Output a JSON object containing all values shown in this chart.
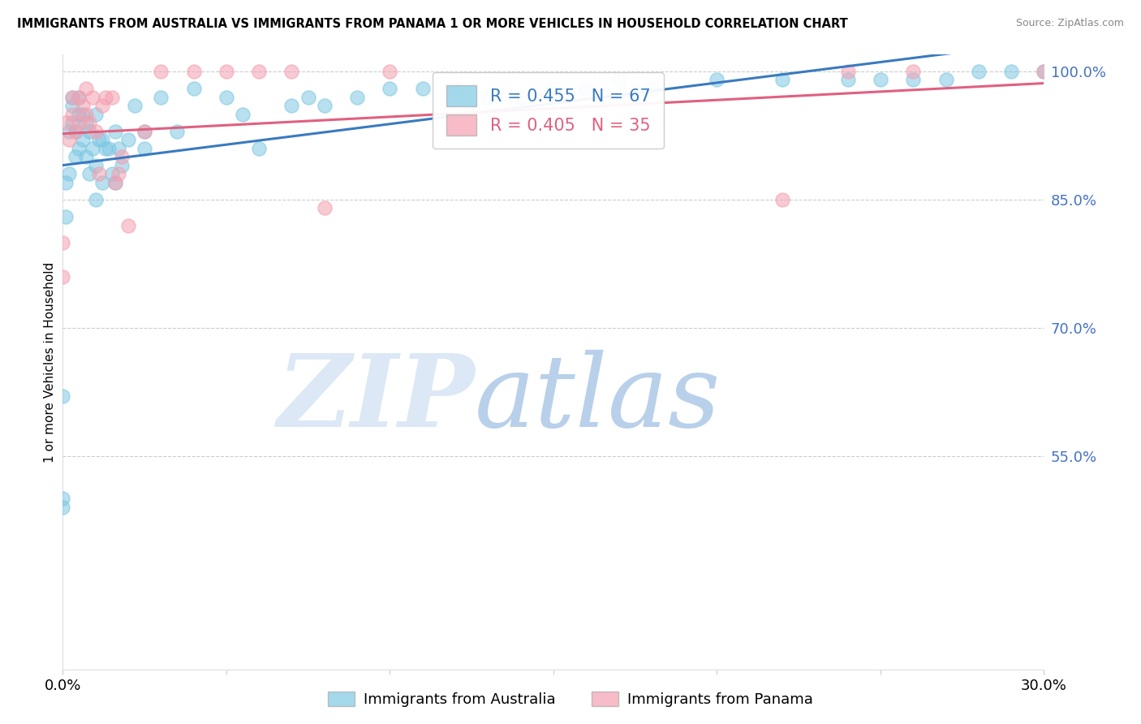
{
  "title": "IMMIGRANTS FROM AUSTRALIA VS IMMIGRANTS FROM PANAMA 1 OR MORE VEHICLES IN HOUSEHOLD CORRELATION CHART",
  "source": "Source: ZipAtlas.com",
  "ylabel": "1 or more Vehicles in Household",
  "xmin": 0.0,
  "xmax": 0.3,
  "ymin": 0.3,
  "ymax": 1.02,
  "grid_color": "#cccccc",
  "background_color": "#ffffff",
  "australia_color": "#7ec8e3",
  "panama_color": "#f4a0b0",
  "australia_line_color": "#3a7abf",
  "panama_line_color": "#e06080",
  "R_australia": 0.455,
  "N_australia": 67,
  "R_panama": 0.405,
  "N_panama": 35,
  "legend_australia": "Immigrants from Australia",
  "legend_panama": "Immigrants from Panama",
  "ytick_vals": [
    1.0,
    0.85,
    0.7,
    0.55
  ],
  "ytick_labels": [
    "100.0%",
    "85.0%",
    "70.0%",
    "55.0%"
  ],
  "australia_x": [
    0.0,
    0.0,
    0.0,
    0.001,
    0.001,
    0.002,
    0.002,
    0.003,
    0.003,
    0.003,
    0.004,
    0.004,
    0.005,
    0.005,
    0.005,
    0.006,
    0.006,
    0.007,
    0.007,
    0.008,
    0.008,
    0.009,
    0.01,
    0.01,
    0.01,
    0.011,
    0.012,
    0.012,
    0.013,
    0.014,
    0.015,
    0.016,
    0.016,
    0.017,
    0.018,
    0.02,
    0.022,
    0.025,
    0.025,
    0.03,
    0.035,
    0.04,
    0.05,
    0.055,
    0.06,
    0.07,
    0.075,
    0.08,
    0.09,
    0.1,
    0.11,
    0.12,
    0.13,
    0.14,
    0.15,
    0.16,
    0.17,
    0.18,
    0.2,
    0.22,
    0.24,
    0.25,
    0.26,
    0.27,
    0.28,
    0.29,
    0.3
  ],
  "australia_y": [
    0.5,
    0.49,
    0.62,
    0.83,
    0.87,
    0.88,
    0.93,
    0.94,
    0.96,
    0.97,
    0.9,
    0.93,
    0.91,
    0.95,
    0.97,
    0.92,
    0.95,
    0.9,
    0.94,
    0.88,
    0.93,
    0.91,
    0.85,
    0.89,
    0.95,
    0.92,
    0.87,
    0.92,
    0.91,
    0.91,
    0.88,
    0.87,
    0.93,
    0.91,
    0.89,
    0.92,
    0.96,
    0.91,
    0.93,
    0.97,
    0.93,
    0.98,
    0.97,
    0.95,
    0.91,
    0.96,
    0.97,
    0.96,
    0.97,
    0.98,
    0.98,
    0.98,
    0.97,
    0.97,
    0.98,
    0.98,
    0.99,
    0.98,
    0.99,
    0.99,
    0.99,
    0.99,
    0.99,
    0.99,
    1.0,
    1.0,
    1.0
  ],
  "panama_x": [
    0.0,
    0.0,
    0.001,
    0.002,
    0.003,
    0.003,
    0.004,
    0.005,
    0.005,
    0.006,
    0.007,
    0.007,
    0.008,
    0.009,
    0.01,
    0.011,
    0.012,
    0.013,
    0.015,
    0.016,
    0.017,
    0.018,
    0.02,
    0.025,
    0.03,
    0.04,
    0.05,
    0.06,
    0.07,
    0.08,
    0.1,
    0.22,
    0.24,
    0.26,
    0.3
  ],
  "panama_y": [
    0.76,
    0.8,
    0.94,
    0.92,
    0.95,
    0.97,
    0.93,
    0.94,
    0.97,
    0.96,
    0.95,
    0.98,
    0.94,
    0.97,
    0.93,
    0.88,
    0.96,
    0.97,
    0.97,
    0.87,
    0.88,
    0.9,
    0.82,
    0.93,
    1.0,
    1.0,
    1.0,
    1.0,
    1.0,
    0.84,
    1.0,
    0.85,
    1.0,
    1.0,
    1.0
  ]
}
